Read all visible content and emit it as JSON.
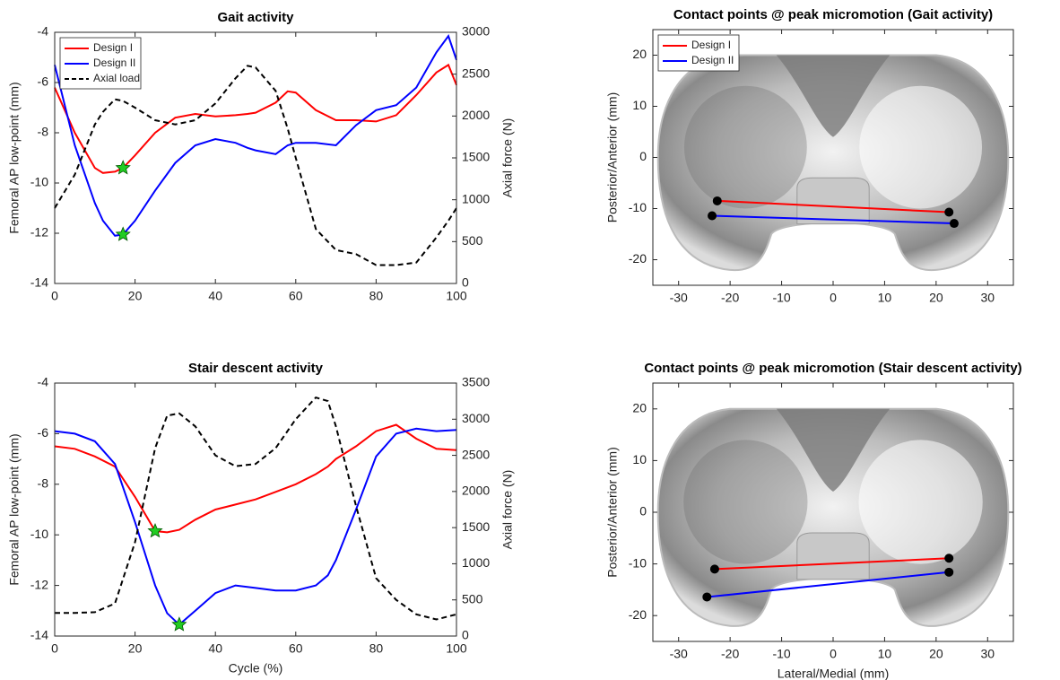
{
  "chart_data": [
    {
      "type": "line",
      "title": "Gait activity",
      "y_label": "Femoral AP low-point (mm)",
      "y2_label": "Axial force (N)",
      "x": [
        0,
        5,
        10,
        12,
        15,
        17,
        20,
        25,
        30,
        35,
        40,
        45,
        48,
        50,
        55,
        58,
        60,
        65,
        70,
        75,
        80,
        85,
        90,
        95,
        98,
        100
      ],
      "xlim": [
        0,
        100
      ],
      "xticks": [
        0,
        20,
        40,
        60,
        80,
        100
      ],
      "ylim": [
        -14,
        -4
      ],
      "yticks": [
        -14,
        -12,
        -10,
        -8,
        -6,
        -4
      ],
      "y2lim": [
        0,
        3000
      ],
      "y2ticks": [
        0,
        500,
        1000,
        1500,
        2000,
        2500,
        3000
      ],
      "legend": "upper left",
      "series": [
        {
          "name": "Design I",
          "color": "#ff0000",
          "values": [
            -6.2,
            -8.0,
            -9.4,
            -9.6,
            -9.55,
            -9.4,
            -8.9,
            -8.0,
            -7.4,
            -7.25,
            -7.35,
            -7.3,
            -7.25,
            -7.2,
            -6.8,
            -6.35,
            -6.4,
            -7.1,
            -7.5,
            -7.5,
            -7.55,
            -7.3,
            -6.5,
            -5.6,
            -5.3,
            -6.1
          ],
          "peak": {
            "x": 17,
            "y": -9.4
          }
        },
        {
          "name": "Design II",
          "color": "#0000ff",
          "values": [
            -5.3,
            -8.5,
            -10.8,
            -11.5,
            -12.1,
            -12.05,
            -11.5,
            -10.3,
            -9.2,
            -8.5,
            -8.25,
            -8.4,
            -8.6,
            -8.7,
            -8.85,
            -8.5,
            -8.4,
            -8.4,
            -8.5,
            -7.7,
            -7.1,
            -6.9,
            -6.2,
            -4.8,
            -4.15,
            -5.1
          ],
          "peak": {
            "x": 17,
            "y": -12.05
          }
        },
        {
          "name": "Axial load",
          "color": "#000000",
          "linestyle": "dashed",
          "axis": "y2",
          "values": [
            900,
            1300,
            1900,
            2050,
            2200,
            2180,
            2100,
            1950,
            1900,
            1950,
            2150,
            2450,
            2600,
            2580,
            2300,
            1850,
            1500,
            650,
            400,
            350,
            220,
            220,
            250,
            550,
            750,
            900
          ]
        }
      ]
    },
    {
      "type": "line",
      "title": "Contact points @ peak micromotion (Gait activity)",
      "y_label": "Posterior/Anterior (mm)",
      "xlim": [
        -35,
        35
      ],
      "xticks": [
        -30,
        -20,
        -10,
        0,
        10,
        20,
        30
      ],
      "ylim": [
        -25,
        25
      ],
      "yticks": [
        -20,
        -10,
        0,
        10,
        20
      ],
      "legend": "upper left",
      "series": [
        {
          "name": "Design I",
          "color": "#ff0000",
          "marker": "circle",
          "x": [
            -22.5,
            22.5
          ],
          "values": [
            -8.5,
            -10.7
          ]
        },
        {
          "name": "Design II",
          "color": "#0000ff",
          "marker": "circle",
          "x": [
            -23.5,
            23.5
          ],
          "values": [
            -11.4,
            -12.9
          ]
        }
      ]
    },
    {
      "type": "line",
      "title": "Stair descent activity",
      "x_label": "Cycle (%)",
      "y_label": "Femoral AP low-point (mm)",
      "y2_label": "Axial force (N)",
      "x": [
        0,
        5,
        10,
        15,
        20,
        25,
        28,
        31,
        35,
        40,
        45,
        50,
        55,
        60,
        65,
        68,
        70,
        75,
        80,
        85,
        90,
        95,
        100
      ],
      "xlim": [
        0,
        100
      ],
      "xticks": [
        0,
        20,
        40,
        60,
        80,
        100
      ],
      "ylim": [
        -14,
        -4
      ],
      "yticks": [
        -14,
        -12,
        -10,
        -8,
        -6,
        -4
      ],
      "y2lim": [
        0,
        3500
      ],
      "y2ticks": [
        0,
        500,
        1000,
        1500,
        2000,
        2500,
        3000,
        3500
      ],
      "series": [
        {
          "name": "Design I",
          "color": "#ff0000",
          "values": [
            -6.5,
            -6.6,
            -6.9,
            -7.3,
            -8.5,
            -9.85,
            -9.9,
            -9.8,
            -9.4,
            -9.0,
            -8.8,
            -8.6,
            -8.3,
            -8.0,
            -7.6,
            -7.3,
            -7.0,
            -6.5,
            -5.9,
            -5.65,
            -6.2,
            -6.6,
            -6.65
          ],
          "peak": {
            "x": 25,
            "y": -9.85
          }
        },
        {
          "name": "Design II",
          "color": "#0000ff",
          "values": [
            -5.9,
            -6.0,
            -6.3,
            -7.2,
            -9.5,
            -12.0,
            -13.1,
            -13.55,
            -13.0,
            -12.3,
            -12.0,
            -12.1,
            -12.2,
            -12.2,
            -12.0,
            -11.6,
            -11.0,
            -9.0,
            -6.9,
            -6.0,
            -5.8,
            -5.9,
            -5.85
          ],
          "peak": {
            "x": 31,
            "y": -13.55
          }
        },
        {
          "name": "Axial load",
          "color": "#000000",
          "linestyle": "dashed",
          "axis": "y2",
          "values": [
            320,
            320,
            330,
            450,
            1300,
            2600,
            3050,
            3080,
            2900,
            2500,
            2350,
            2380,
            2600,
            3000,
            3300,
            3250,
            2900,
            1800,
            800,
            500,
            300,
            230,
            300
          ]
        }
      ]
    },
    {
      "type": "line",
      "title": "Contact points @ peak micromotion (Stair descent activity)",
      "x_label": "Lateral/Medial (mm)",
      "y_label": "Posterior/Anterior (mm)",
      "xlim": [
        -35,
        35
      ],
      "xticks": [
        -30,
        -20,
        -10,
        0,
        10,
        20,
        30
      ],
      "ylim": [
        -25,
        25
      ],
      "yticks": [
        -20,
        -10,
        0,
        10,
        20
      ],
      "series": [
        {
          "name": "Design I",
          "color": "#ff0000",
          "marker": "circle",
          "x": [
            -23,
            22.5
          ],
          "values": [
            -11,
            -8.9
          ]
        },
        {
          "name": "Design II",
          "color": "#0000ff",
          "marker": "circle",
          "x": [
            -24.5,
            22.5
          ],
          "values": [
            -16.4,
            -11.6
          ]
        }
      ]
    }
  ]
}
